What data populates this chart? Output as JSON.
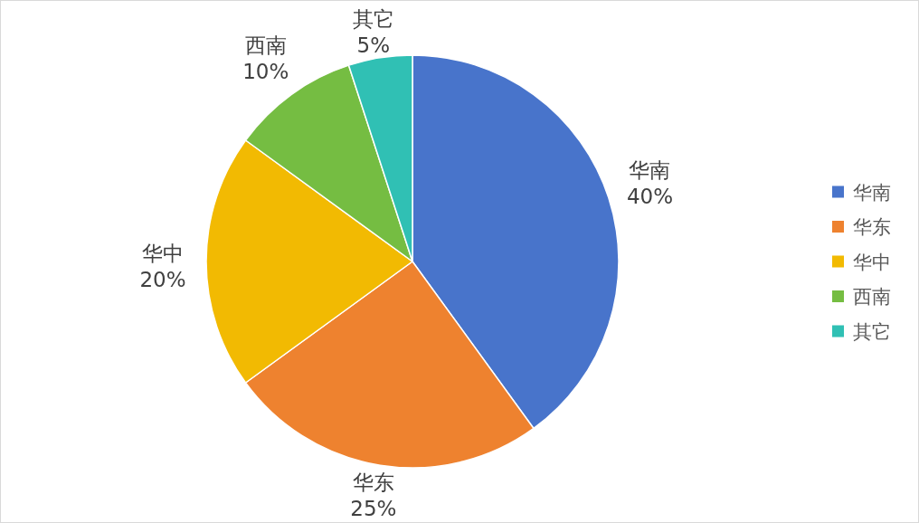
{
  "chart_data": {
    "type": "pie",
    "categories": [
      "华南",
      "华东",
      "华中",
      "西南",
      "其它"
    ],
    "values": [
      40,
      25,
      20,
      10,
      5
    ],
    "colors": [
      "#4874cb",
      "#ee822f",
      "#f2ba02",
      "#75bd42",
      "#30c0b4"
    ],
    "value_labels": [
      "40%",
      "25%",
      "20%",
      "10%",
      "5%"
    ],
    "legend": "right"
  }
}
